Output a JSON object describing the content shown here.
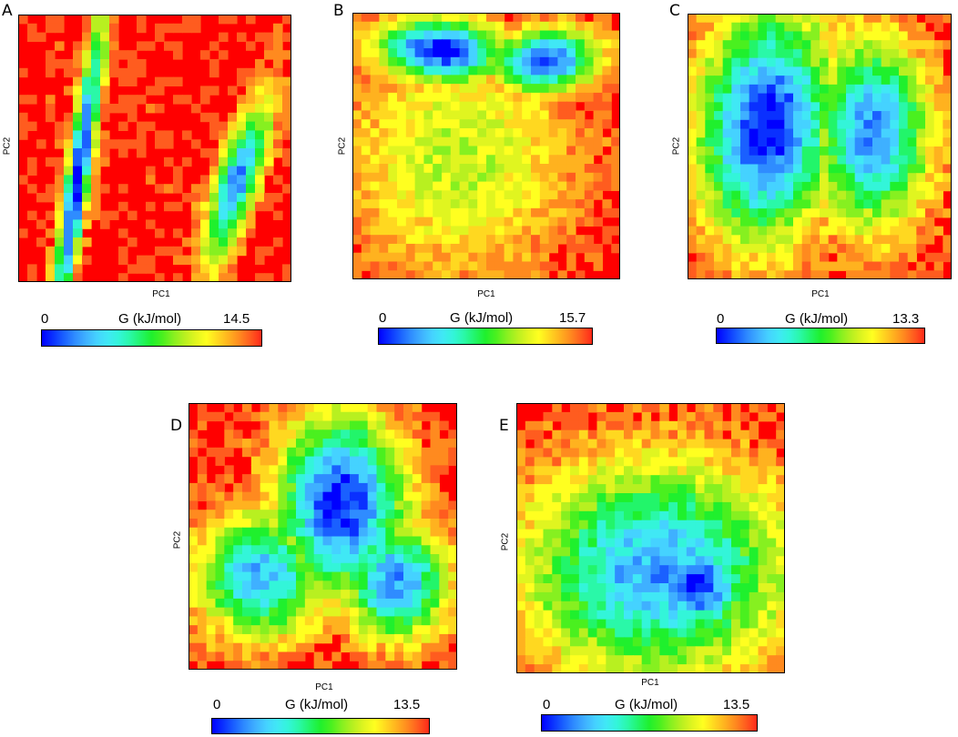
{
  "colormap": [
    "#0000ff",
    "#0a30ff",
    "#1a60ff",
    "#2f8cff",
    "#3fb0ff",
    "#45d2ff",
    "#40e8f5",
    "#33f5d9",
    "#2af8a8",
    "#22f56a",
    "#1ff02d",
    "#4af01f",
    "#86f020",
    "#b8f020",
    "#e0f520",
    "#ffff20",
    "#ffd820",
    "#ffb21f",
    "#ff8a1f",
    "#ff5c1f",
    "#ff2a1a"
  ],
  "background_color": "#ff0000",
  "chart_data": [
    {
      "panel": "A",
      "type": "heatmap",
      "xlabel": "PC1",
      "ylabel": "PC2",
      "colorbar": {
        "title": "G (kJ/mol)",
        "min": "0",
        "max": "14.5"
      },
      "minima": [
        {
          "x": 0.22,
          "y": 0.4,
          "sx": 0.05,
          "sy": 0.31,
          "rho": 0.9,
          "depth": 14.5
        },
        {
          "x": 0.8,
          "y": 0.37,
          "sx": 0.06,
          "sy": 0.15,
          "rho": 0.75,
          "depth": 12.5
        }
      ]
    },
    {
      "panel": "B",
      "type": "heatmap",
      "xlabel": "PC1",
      "ylabel": "PC2",
      "colorbar": {
        "title": "G (kJ/mol)",
        "min": "0",
        "max": "15.7"
      },
      "minima": [
        {
          "x": 0.33,
          "y": 0.86,
          "sx": 0.12,
          "sy": 0.06,
          "rho": -0.1,
          "depth": 15.7
        },
        {
          "x": 0.72,
          "y": 0.82,
          "sx": 0.1,
          "sy": 0.06,
          "rho": 0.1,
          "depth": 15.0
        },
        {
          "x": 0.4,
          "y": 0.45,
          "sx": 0.22,
          "sy": 0.22,
          "rho": 0.0,
          "depth": 5.5
        }
      ]
    },
    {
      "panel": "C",
      "type": "heatmap",
      "xlabel": "PC1",
      "ylabel": "PC2",
      "colorbar": {
        "title": "G (kJ/mol)",
        "min": "0",
        "max": "13.3"
      },
      "minima": [
        {
          "x": 0.3,
          "y": 0.58,
          "sx": 0.13,
          "sy": 0.22,
          "rho": 0.1,
          "depth": 13.3
        },
        {
          "x": 0.7,
          "y": 0.55,
          "sx": 0.11,
          "sy": 0.18,
          "rho": 0.0,
          "depth": 11.5
        }
      ]
    },
    {
      "panel": "D",
      "type": "heatmap",
      "xlabel": "PC1",
      "ylabel": "PC2",
      "colorbar": {
        "title": "G (kJ/mol)",
        "min": "0",
        "max": "13.5"
      },
      "minima": [
        {
          "x": 0.57,
          "y": 0.62,
          "sx": 0.12,
          "sy": 0.17,
          "rho": 0.0,
          "depth": 13.5
        },
        {
          "x": 0.27,
          "y": 0.35,
          "sx": 0.12,
          "sy": 0.12,
          "rho": 0.0,
          "depth": 10.5
        },
        {
          "x": 0.77,
          "y": 0.33,
          "sx": 0.1,
          "sy": 0.11,
          "rho": 0.0,
          "depth": 11.5
        }
      ]
    },
    {
      "panel": "E",
      "type": "heatmap",
      "xlabel": "PC1",
      "ylabel": "PC2",
      "colorbar": {
        "title": "G (kJ/mol)",
        "min": "0",
        "max": "13.5"
      },
      "minima": [
        {
          "x": 0.52,
          "y": 0.38,
          "sx": 0.25,
          "sy": 0.2,
          "rho": 0.0,
          "depth": 11.0
        },
        {
          "x": 0.68,
          "y": 0.33,
          "sx": 0.09,
          "sy": 0.09,
          "rho": 0.0,
          "depth": 13.5
        }
      ]
    }
  ]
}
